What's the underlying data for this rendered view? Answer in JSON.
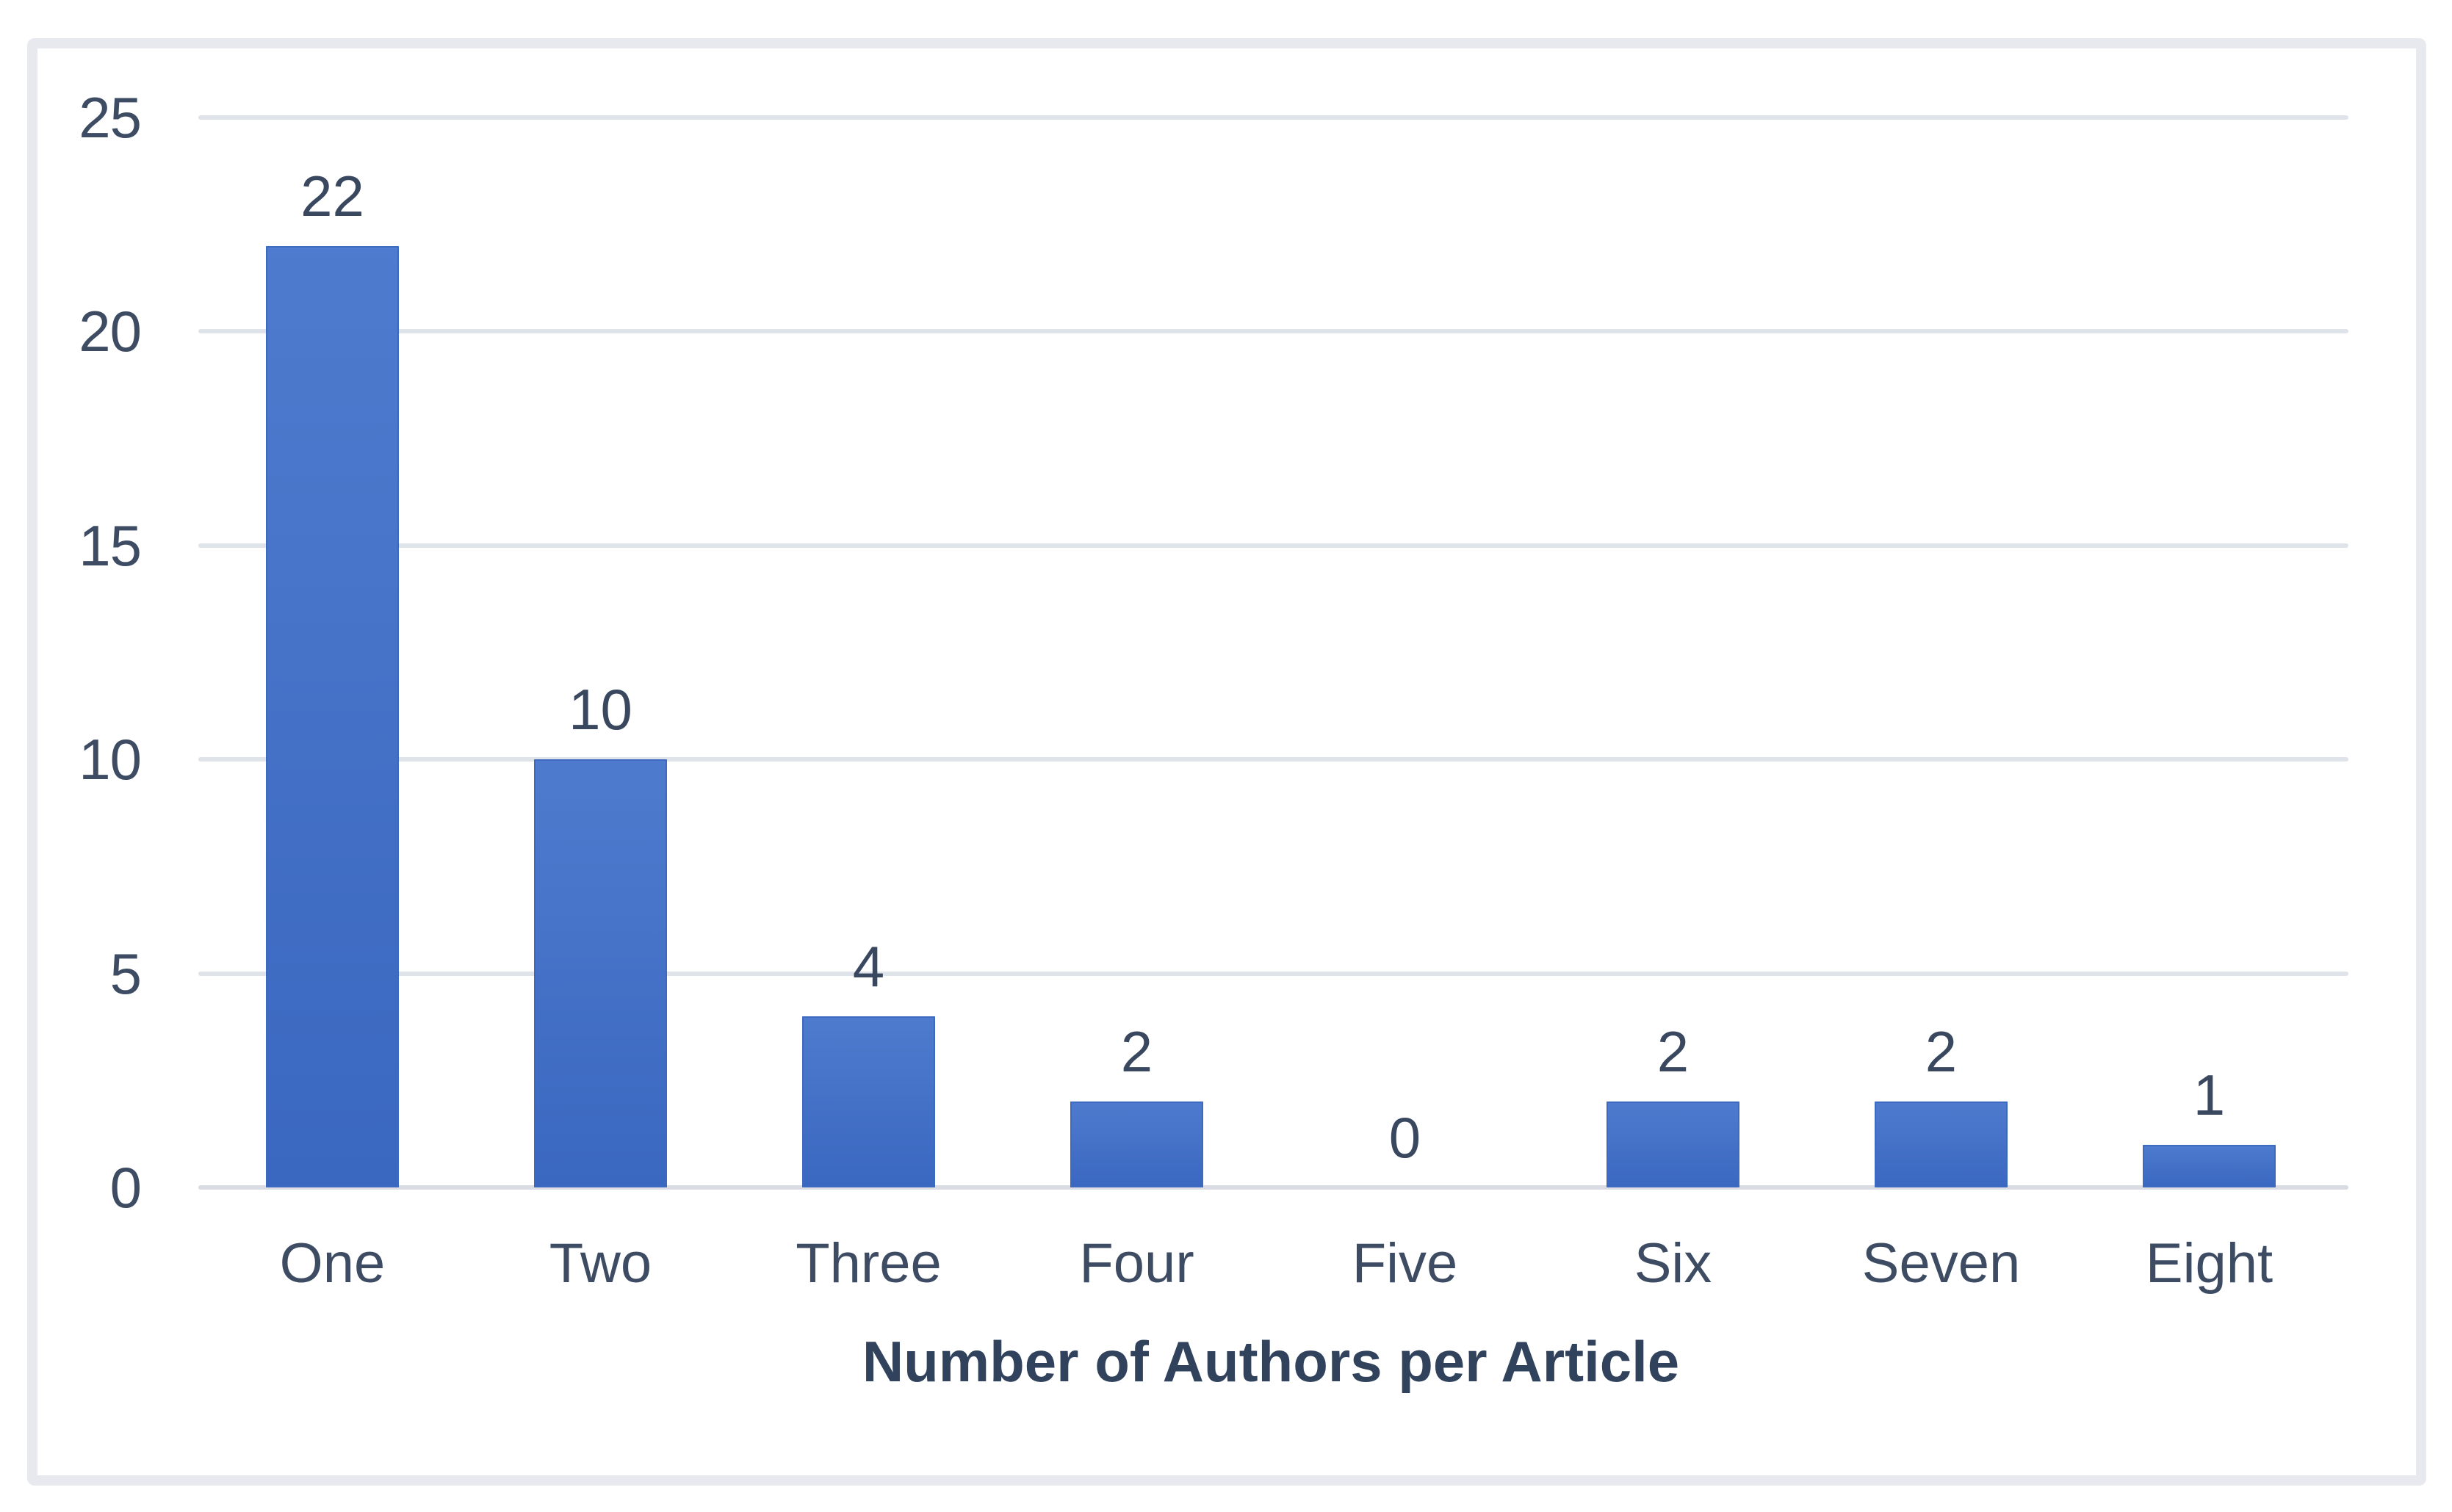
{
  "chart_data": {
    "type": "bar",
    "title": "",
    "xlabel": "Number of Authors per Article",
    "ylabel": "",
    "categories": [
      "One",
      "Two",
      "Three",
      "Four",
      "Five",
      "Six",
      "Seven",
      "Eight"
    ],
    "values": [
      22,
      10,
      4,
      2,
      0,
      2,
      2,
      1
    ],
    "data_labels": [
      "22",
      "10",
      "4",
      "2",
      "0",
      "2",
      "2",
      "1"
    ],
    "yticks": [
      0,
      5,
      10,
      15,
      20,
      25
    ],
    "ylim": [
      0,
      25
    ],
    "grid": "horizontal-only",
    "legend_position": "none",
    "colors": {
      "bar_gradient_top": "#507bce",
      "bar_top": "#4f7bce",
      "bar_bottom": "#3a67c0",
      "bar_edge": "#3d69c1",
      "gridline": "#dfe3ea",
      "axis_line": "#d9dce2",
      "tick_text": "#3e4c63",
      "category_text": "#3e4c63",
      "data_label_text": "#3a485f",
      "title_text": "#31435c",
      "frame_border": "#e7e9ee",
      "background": "#ffffff"
    }
  }
}
